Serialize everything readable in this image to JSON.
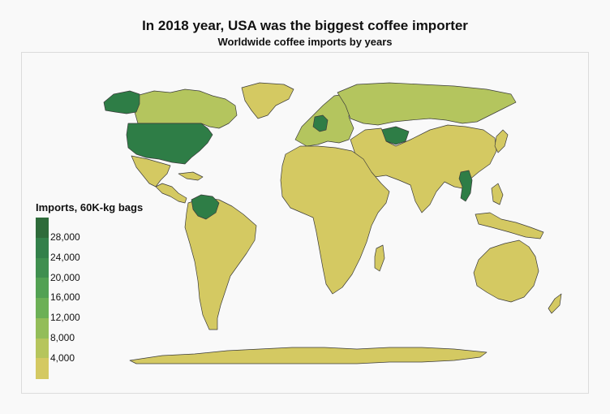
{
  "header": {
    "title": "In 2018 year, USA was the biggest coffee importer",
    "subtitle": "Worldwide coffee imports by years"
  },
  "legend": {
    "title": "Imports, 60K-kg bags",
    "labels": [
      "28,000",
      "24,000",
      "20,000",
      "16,000",
      "12,000",
      "8,000",
      "4,000"
    ],
    "colors": [
      "#2e6b3a",
      "#33804a",
      "#3f8f4f",
      "#52a153",
      "#6cb056",
      "#93bd59",
      "#b6c55c",
      "#d4c962"
    ]
  },
  "palette": {
    "high": "#2e7d46",
    "mid": "#b4c55e",
    "low": "#d4c962",
    "ocean": "#f9f9f9",
    "border": "#3b3b3b"
  },
  "regions": {
    "usa": "high",
    "alaska": "high",
    "canada": "mid",
    "greenland": "low",
    "mexico": "low",
    "central_america": "low",
    "south_america": "low",
    "venezuela": "high",
    "europe": "mid",
    "germany": "high",
    "russia": "mid",
    "central_asia": "high",
    "asia": "low",
    "vietnam": "high",
    "africa": "low",
    "australia": "low",
    "antarctica": "low"
  }
}
